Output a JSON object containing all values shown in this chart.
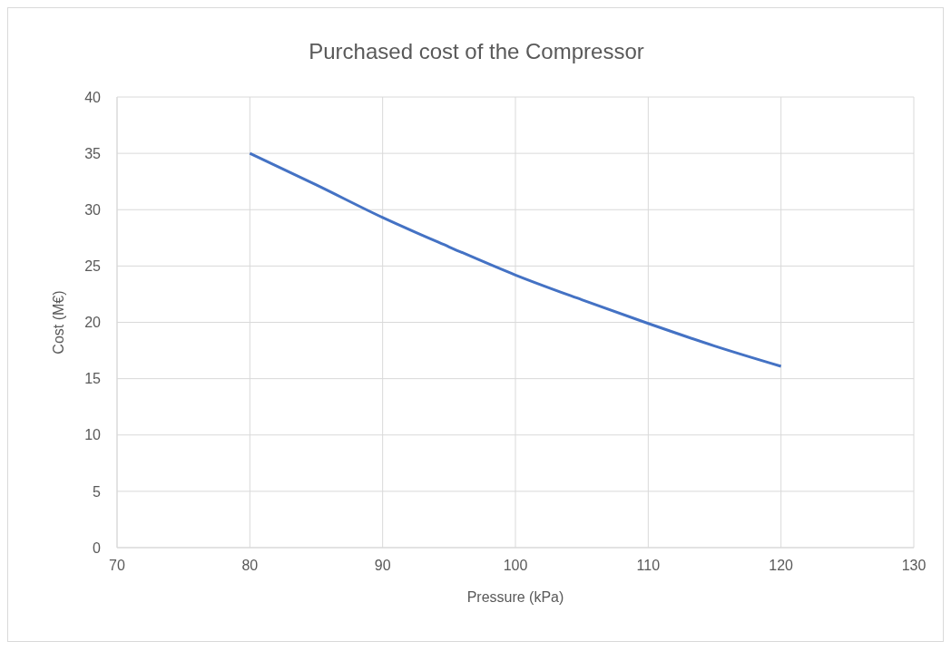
{
  "chart_data": {
    "type": "line",
    "title": "Purchased cost of the Compressor",
    "xlabel": "Pressure (kPa)",
    "ylabel": "Cost (M€)",
    "series": [
      {
        "color": "#4472c4",
        "x": [
          80,
          85,
          90,
          95,
          100,
          105,
          110,
          115,
          120
        ],
        "values": [
          35,
          32.2,
          29.3,
          26.7,
          24.2,
          22,
          19.9,
          17.9,
          16.1
        ]
      }
    ],
    "xlim": [
      70,
      130
    ],
    "xticks": [
      70,
      80,
      90,
      100,
      110,
      120,
      130
    ],
    "ylim": [
      0,
      40
    ],
    "yticks": [
      0,
      5,
      10,
      15,
      20,
      25,
      30,
      35,
      40
    ],
    "grid": true,
    "marker": "none",
    "line_style": "solid",
    "legend": false
  }
}
